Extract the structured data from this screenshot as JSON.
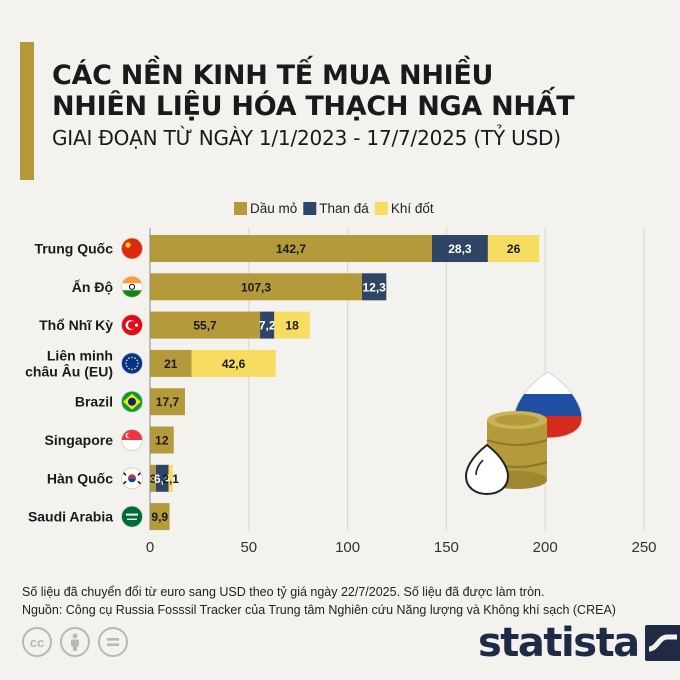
{
  "header": {
    "title_line1": "CÁC NỀN KINH TẾ MUA NHIỀU",
    "title_line2": "NHIÊN LIỆU HÓA THẠCH NGA NHẤT",
    "subtitle": "GIAI ĐOẠN TỪ NGÀY 1/1/2023 - 17/7/2025 (TỶ USD)"
  },
  "colors": {
    "accent": "#b49a3a",
    "oil": "#b49a3a",
    "coal": "#2e4566",
    "gas": "#f7dc62",
    "grid": "#d6d4cd",
    "brand": "#1f2a44"
  },
  "chart_data": {
    "type": "bar",
    "orientation": "horizontal",
    "stacked": true,
    "categories": [
      "Trung Quốc",
      "Ấn Độ",
      "Thổ Nhĩ Kỳ",
      "Liên minh châu Âu (EU)",
      "Brazil",
      "Singapore",
      "Hàn Quốc",
      "Saudi Arabia"
    ],
    "category_lines": [
      [
        "Trung Quốc"
      ],
      [
        "Ấn Độ"
      ],
      [
        "Thổ Nhĩ Kỳ"
      ],
      [
        "Liên minh",
        "châu Âu (EU)"
      ],
      [
        "Brazil"
      ],
      [
        "Singapore"
      ],
      [
        "Hàn Quốc"
      ],
      [
        "Saudi Arabia"
      ]
    ],
    "flag_icons": [
      "china-flag-icon",
      "india-flag-icon",
      "turkey-flag-icon",
      "eu-flag-icon",
      "brazil-flag-icon",
      "singapore-flag-icon",
      "south-korea-flag-icon",
      "saudi-arabia-flag-icon"
    ],
    "series": [
      {
        "name": "Dầu mỏ",
        "values": [
          142.7,
          107.3,
          55.7,
          21,
          17.7,
          12,
          3,
          9.9
        ],
        "labels": [
          "142,7",
          "107,3",
          "55,7",
          "21",
          "17,7",
          "12",
          "3",
          "9,9"
        ]
      },
      {
        "name": "Than đá",
        "values": [
          28.3,
          12.3,
          7.2,
          0,
          0,
          0,
          6.4,
          0
        ],
        "labels": [
          "28,3",
          "12,3",
          "7,2",
          "",
          "",
          "",
          "6,4",
          ""
        ]
      },
      {
        "name": "Khí đốt",
        "values": [
          26,
          0,
          18,
          42.6,
          0,
          0,
          2.1,
          0
        ],
        "labels": [
          "26",
          "",
          "18",
          "42,6",
          "",
          "",
          "2,1",
          ""
        ]
      }
    ],
    "xlim": [
      0,
      250
    ],
    "xticks": [
      0,
      50,
      100,
      150,
      200,
      250
    ],
    "xtick_labels": [
      "0",
      "50",
      "100",
      "150",
      "200",
      "250"
    ],
    "grid": true,
    "legend_position": "top-center"
  },
  "footer": {
    "note": "Số liệu đã chuyển đổi từ euro sang USD theo tỷ giá ngày 22/7/2025. Số liệu đã được làm tròn.",
    "source": "Nguồn: Công cụ Russia Fosssil Tracker của Trung tâm Nghiên cứu Năng lượng và Không khí sạch (CREA)",
    "brand": "statista"
  }
}
